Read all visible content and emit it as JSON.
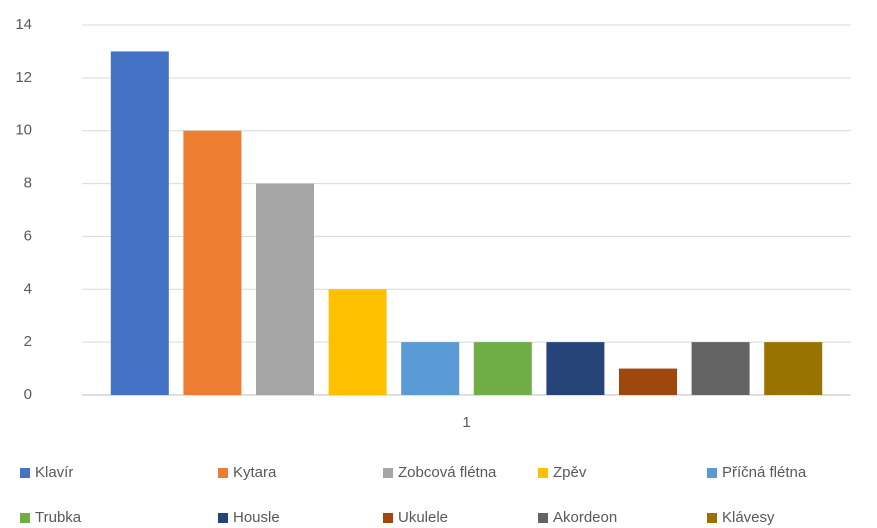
{
  "chart_data": {
    "type": "bar",
    "categories": [
      "1"
    ],
    "series": [
      {
        "name": "Klavír",
        "color": "#4472c4",
        "values": [
          13
        ]
      },
      {
        "name": "Kytara",
        "color": "#ed7d31",
        "values": [
          10
        ]
      },
      {
        "name": "Zobcová flétna",
        "color": "#a5a5a5",
        "values": [
          8
        ]
      },
      {
        "name": "Zpěv",
        "color": "#ffc000",
        "values": [
          4
        ]
      },
      {
        "name": "Příčná flétna",
        "color": "#5b9bd5",
        "values": [
          2
        ]
      },
      {
        "name": "Trubka",
        "color": "#70ad47",
        "values": [
          2
        ]
      },
      {
        "name": "Housle",
        "color": "#264478",
        "values": [
          2
        ]
      },
      {
        "name": "Ukulele",
        "color": "#9e480e",
        "values": [
          1
        ]
      },
      {
        "name": "Akordeon",
        "color": "#636363",
        "values": [
          2
        ]
      },
      {
        "name": "Klávesy",
        "color": "#997300",
        "values": [
          2
        ]
      }
    ],
    "ylim": [
      0,
      14
    ],
    "yticks": [
      0,
      2,
      4,
      6,
      8,
      10,
      12,
      14
    ],
    "grid": true,
    "legend": "bottom"
  }
}
